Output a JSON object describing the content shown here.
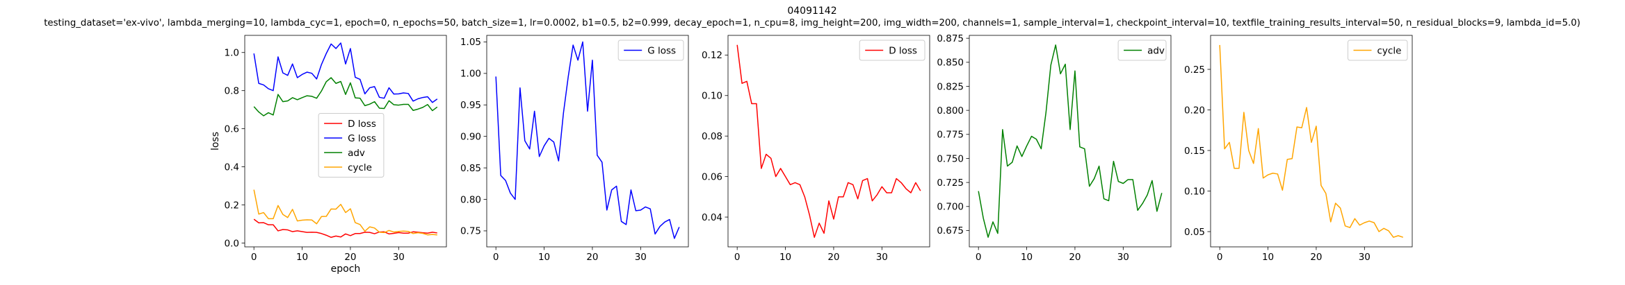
{
  "figure": {
    "title_line1": "04091142",
    "title_line2": "testing_dataset='ex-vivo', lambda_merging=10, lambda_cyc=1, epoch=0, n_epochs=50, batch_size=1, lr=0.0002, b1=0.5, b2=0.999, decay_epoch=1, n_cpu=8, img_height=200, img_width=200, channels=1, sample_interval=1, checkpoint_interval=10, textfile_training_results_interval=50, n_residual_blocks=9, lambda_id=5.0)"
  },
  "colors": {
    "D loss": "#ff0000",
    "G loss": "#0000ff",
    "adv": "#008000",
    "cycle": "#ffa500"
  },
  "chart_data": [
    {
      "type": "line",
      "xlabel": "epoch",
      "ylabel": "loss",
      "xlim": [
        -1.9,
        39.9
      ],
      "ylim": [
        -0.02,
        1.09
      ],
      "xticks": [
        0,
        10,
        20,
        30
      ],
      "yticks": [
        0.0,
        0.2,
        0.4,
        0.6,
        0.8,
        1.0
      ],
      "ytick_labels": [
        "0.0",
        "0.2",
        "0.4",
        "0.6",
        "0.8",
        "1.0"
      ],
      "legend": "center",
      "series": [
        {
          "name": "D loss",
          "color": "#ff0000",
          "values": [
            0.125,
            0.106,
            0.107,
            0.096,
            0.096,
            0.064,
            0.071,
            0.069,
            0.06,
            0.064,
            0.06,
            0.056,
            0.057,
            0.056,
            0.05,
            0.041,
            0.03,
            0.037,
            0.032,
            0.048,
            0.039,
            0.05,
            0.05,
            0.057,
            0.056,
            0.049,
            0.058,
            0.059,
            0.048,
            0.051,
            0.055,
            0.052,
            0.052,
            0.059,
            0.057,
            0.054,
            0.052,
            0.057,
            0.053
          ]
        },
        {
          "name": "G loss",
          "color": "#0000ff",
          "values": [
            0.995,
            0.838,
            0.83,
            0.81,
            0.8,
            0.977,
            0.893,
            0.88,
            0.94,
            0.868,
            0.885,
            0.897,
            0.891,
            0.861,
            0.937,
            0.995,
            1.045,
            1.021,
            1.05,
            0.94,
            1.021,
            0.87,
            0.859,
            0.783,
            0.815,
            0.821,
            0.765,
            0.76,
            0.815,
            0.782,
            0.783,
            0.788,
            0.785,
            0.745,
            0.757,
            0.764,
            0.768,
            0.738,
            0.756
          ]
        },
        {
          "name": "adv",
          "color": "#008000",
          "values": [
            0.716,
            0.688,
            0.668,
            0.684,
            0.672,
            0.78,
            0.742,
            0.746,
            0.763,
            0.752,
            0.763,
            0.773,
            0.77,
            0.76,
            0.798,
            0.847,
            0.868,
            0.838,
            0.848,
            0.78,
            0.841,
            0.762,
            0.76,
            0.721,
            0.729,
            0.742,
            0.708,
            0.706,
            0.747,
            0.726,
            0.724,
            0.728,
            0.728,
            0.696,
            0.703,
            0.712,
            0.727,
            0.695,
            0.714
          ]
        },
        {
          "name": "cycle",
          "color": "#ffa500",
          "values": [
            0.28,
            0.152,
            0.16,
            0.128,
            0.128,
            0.197,
            0.15,
            0.134,
            0.177,
            0.116,
            0.12,
            0.122,
            0.121,
            0.101,
            0.139,
            0.14,
            0.179,
            0.178,
            0.203,
            0.16,
            0.18,
            0.107,
            0.097,
            0.062,
            0.085,
            0.079,
            0.057,
            0.055,
            0.066,
            0.058,
            0.061,
            0.063,
            0.061,
            0.05,
            0.054,
            0.051,
            0.043,
            0.045,
            0.043
          ]
        }
      ]
    },
    {
      "type": "line",
      "xlim": [
        -1.9,
        39.9
      ],
      "ylim": [
        0.7246,
        1.0604
      ],
      "xticks": [
        0,
        10,
        20,
        30
      ],
      "yticks": [
        0.75,
        0.8,
        0.85,
        0.9,
        0.95,
        1.0,
        1.05
      ],
      "ytick_labels": [
        "0.75",
        "0.80",
        "0.85",
        "0.90",
        "0.95",
        "1.00",
        "1.05"
      ],
      "legend": "top-right",
      "series": [
        {
          "name": "G loss",
          "color": "#0000ff",
          "values": [
            0.995,
            0.838,
            0.83,
            0.81,
            0.8,
            0.977,
            0.893,
            0.88,
            0.94,
            0.868,
            0.885,
            0.897,
            0.891,
            0.861,
            0.937,
            0.995,
            1.045,
            1.021,
            1.05,
            0.94,
            1.021,
            0.87,
            0.859,
            0.783,
            0.815,
            0.821,
            0.765,
            0.76,
            0.815,
            0.782,
            0.783,
            0.788,
            0.785,
            0.745,
            0.757,
            0.764,
            0.768,
            0.738,
            0.756
          ]
        }
      ]
    },
    {
      "type": "line",
      "xlim": [
        -1.9,
        39.9
      ],
      "ylim": [
        0.0253,
        0.1297
      ],
      "xticks": [
        0,
        10,
        20,
        30
      ],
      "yticks": [
        0.04,
        0.06,
        0.08,
        0.1,
        0.12
      ],
      "ytick_labels": [
        "0.04",
        "0.06",
        "0.08",
        "0.10",
        "0.12"
      ],
      "legend": "top-right",
      "series": [
        {
          "name": "D loss",
          "color": "#ff0000",
          "values": [
            0.125,
            0.106,
            0.107,
            0.096,
            0.096,
            0.064,
            0.071,
            0.069,
            0.06,
            0.064,
            0.06,
            0.056,
            0.057,
            0.056,
            0.05,
            0.041,
            0.03,
            0.037,
            0.032,
            0.048,
            0.039,
            0.05,
            0.05,
            0.057,
            0.056,
            0.049,
            0.058,
            0.059,
            0.048,
            0.051,
            0.055,
            0.052,
            0.052,
            0.059,
            0.057,
            0.054,
            0.052,
            0.057,
            0.053
          ]
        }
      ]
    },
    {
      "type": "line",
      "xlim": [
        -1.9,
        39.9
      ],
      "ylim": [
        0.658,
        0.878
      ],
      "xticks": [
        0,
        10,
        20,
        30
      ],
      "yticks": [
        0.675,
        0.7,
        0.725,
        0.75,
        0.775,
        0.8,
        0.825,
        0.85,
        0.875
      ],
      "ytick_labels": [
        "0.675",
        "0.700",
        "0.725",
        "0.750",
        "0.775",
        "0.800",
        "0.825",
        "0.850",
        "0.875"
      ],
      "legend": "top-right",
      "series": [
        {
          "name": "adv",
          "color": "#008000",
          "values": [
            0.716,
            0.688,
            0.668,
            0.684,
            0.672,
            0.78,
            0.742,
            0.746,
            0.763,
            0.752,
            0.763,
            0.773,
            0.77,
            0.76,
            0.798,
            0.847,
            0.868,
            0.838,
            0.848,
            0.78,
            0.841,
            0.762,
            0.76,
            0.721,
            0.729,
            0.742,
            0.708,
            0.706,
            0.747,
            0.726,
            0.724,
            0.728,
            0.728,
            0.696,
            0.703,
            0.712,
            0.727,
            0.695,
            0.714
          ]
        }
      ]
    },
    {
      "type": "line",
      "xlim": [
        -1.9,
        39.9
      ],
      "ylim": [
        0.0312,
        0.2919
      ],
      "xticks": [
        0,
        10,
        20,
        30
      ],
      "yticks": [
        0.05,
        0.1,
        0.15,
        0.2,
        0.25
      ],
      "ytick_labels": [
        "0.05",
        "0.10",
        "0.15",
        "0.20",
        "0.25"
      ],
      "legend": "top-right",
      "series": [
        {
          "name": "cycle",
          "color": "#ffa500",
          "values": [
            0.28,
            0.152,
            0.16,
            0.128,
            0.128,
            0.197,
            0.15,
            0.134,
            0.177,
            0.116,
            0.12,
            0.122,
            0.121,
            0.101,
            0.139,
            0.14,
            0.179,
            0.178,
            0.203,
            0.16,
            0.18,
            0.107,
            0.097,
            0.062,
            0.085,
            0.079,
            0.057,
            0.055,
            0.066,
            0.058,
            0.061,
            0.063,
            0.061,
            0.05,
            0.054,
            0.051,
            0.043,
            0.045,
            0.043
          ]
        }
      ]
    }
  ]
}
